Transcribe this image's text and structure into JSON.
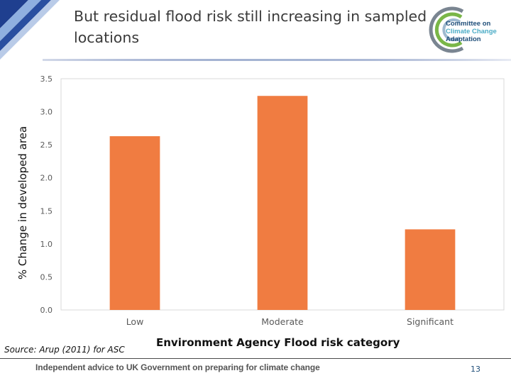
{
  "slide": {
    "title": "But residual flood risk still increasing in sampled\nlocations",
    "source": "Source: Arup (2011) for ASC",
    "footer": "Independent advice to UK Government on preparing for climate change",
    "page_number": "13"
  },
  "logo": {
    "line1": "Committee on",
    "line2": "Climate Change",
    "line3": "Adaptation"
  },
  "colors": {
    "bar": "#f07c41",
    "grid": "#d9d9d9",
    "tick_text": "#595959",
    "logo_navy": "#1f4e79",
    "logo_blue": "#4bacc6",
    "logo_green": "#7ab648"
  },
  "chart_data": {
    "type": "bar",
    "categories": [
      "Low",
      "Moderate",
      "Significant"
    ],
    "values": [
      2.63,
      3.24,
      1.22
    ],
    "ylim": [
      0,
      3.5
    ],
    "yticks": [
      "0.0",
      "0.5",
      "1.0",
      "1.5",
      "2.0",
      "2.5",
      "3.0",
      "3.5"
    ],
    "ylabel": "% Change in developed area",
    "xlabel": "Environment Agency Flood risk category",
    "grid": false,
    "legend": "none"
  }
}
